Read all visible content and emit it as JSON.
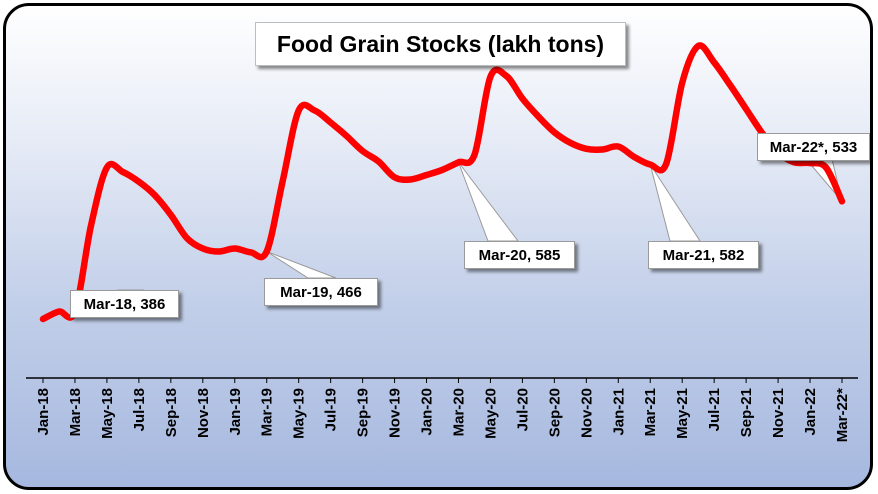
{
  "chart_data": {
    "type": "line",
    "title": "Food Grain Stocks (lakh tons)",
    "xlabel": "",
    "ylabel": "",
    "grid": false,
    "legend": "none",
    "ylim": [
      300,
      700
    ],
    "x": [
      "Jan-18",
      "Feb-18",
      "Mar-18",
      "Apr-18",
      "May-18",
      "Jun-18",
      "Jul-18",
      "Aug-18",
      "Sep-18",
      "Oct-18",
      "Nov-18",
      "Dec-18",
      "Jan-19",
      "Feb-19",
      "Mar-19",
      "Apr-19",
      "May-19",
      "Jun-19",
      "Jul-19",
      "Aug-19",
      "Sep-19",
      "Oct-19",
      "Nov-19",
      "Dec-19",
      "Jan-20",
      "Feb-20",
      "Mar-20",
      "Apr-20",
      "May-20",
      "Jun-20",
      "Jul-20",
      "Aug-20",
      "Sep-20",
      "Oct-20",
      "Nov-20",
      "Dec-20",
      "Jan-21",
      "Feb-21",
      "Mar-21",
      "Apr-21",
      "May-21",
      "Jun-21",
      "Jul-21",
      "Aug-21",
      "Sep-21",
      "Oct-21",
      "Nov-21",
      "Dec-21",
      "Jan-22",
      "Feb-22",
      "Mar-22*"
    ],
    "tick_labels": [
      "Jan-18",
      "Mar-18",
      "May-18",
      "Jul-18",
      "Sep-18",
      "Nov-18",
      "Jan-19",
      "Mar-19",
      "May-19",
      "Jul-19",
      "Sep-19",
      "Nov-19",
      "Jan-20",
      "Mar-20",
      "May-20",
      "Jul-20",
      "Sep-20",
      "Nov-20",
      "Jan-21",
      "Mar-21",
      "May-21",
      "Jul-21",
      "Sep-21",
      "Nov-21",
      "Jan-22",
      "Mar-22*"
    ],
    "series": [
      {
        "name": "Food Grain Stocks",
        "color": "#ff0000",
        "values": [
          376,
          386,
          386,
          500,
          578,
          572,
          559,
          541,
          515,
          484,
          470,
          466,
          470,
          465,
          466,
          560,
          654,
          654,
          638,
          620,
          600,
          586,
          565,
          562,
          568,
          575,
          585,
          595,
          699,
          700,
          670,
          646,
          625,
          611,
          603,
          602,
          606,
          592,
          582,
          583,
          691,
          740,
          718,
          688,
          656,
          624,
          598,
          585,
          584,
          578,
          533
        ]
      }
    ],
    "annotations": [
      {
        "label": "Mar-18",
        "value": 386
      },
      {
        "label": "Mar-19",
        "value": 466
      },
      {
        "label": "Mar-20",
        "value": 585
      },
      {
        "label": "Mar-21",
        "value": 582
      },
      {
        "label": "Mar-22*",
        "value": 533
      }
    ]
  }
}
